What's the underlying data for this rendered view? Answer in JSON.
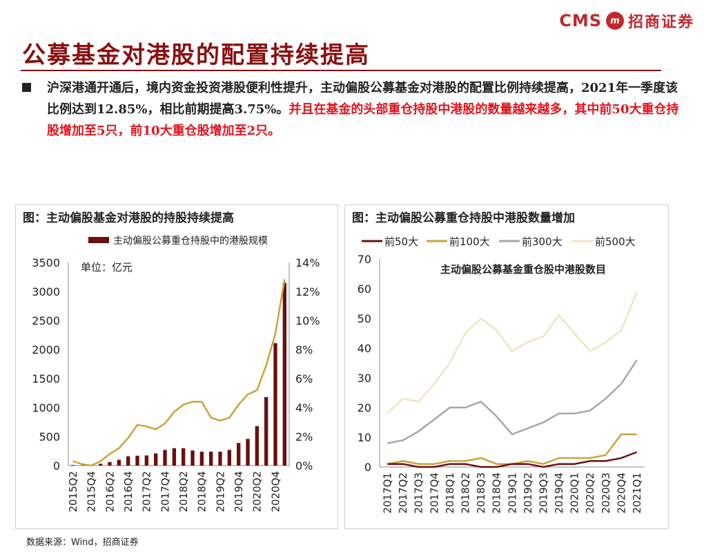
{
  "header": {
    "logo_cms": "CMS",
    "logo_cn": "招商证券",
    "title": "公募基金对港股的配置持续提高"
  },
  "bullet": {
    "black": "沪深港通开通后，境内资金投资港股便利性提升，主动偏股公募基金对港股的配置比例持续提高，2021年一季度该比例达到12.85%，相比前期提高3.75%。",
    "red": "并且在基金的头部重仓持股中港股的数量越来越多，其中前50大重仓持股增加至5只，前10大重仓股增加至2只。"
  },
  "source": "数据来源：Wind，招商证券",
  "colors": {
    "brand": "#c0282d",
    "title": "#8b0e0e",
    "emph": "#e0141e"
  },
  "chart_data": [
    {
      "type": "bar",
      "title": "图：主动偏股基金对港股的持股持续提高",
      "unit_label": "单位：亿元",
      "legend": "主动偏股公募重仓持股中的港股规模",
      "categories": [
        "2015Q2",
        "2015Q3",
        "2015Q4",
        "2016Q1",
        "2016Q2",
        "2016Q3",
        "2016Q4",
        "2017Q1",
        "2017Q2",
        "2017Q3",
        "2017Q4",
        "2018Q1",
        "2018Q2",
        "2018Q3",
        "2018Q4",
        "2019Q1",
        "2019Q2",
        "2019Q3",
        "2019Q4",
        "2020Q1",
        "2020Q2",
        "2020Q3",
        "2020Q4",
        "2021Q1"
      ],
      "x_tick_labels": [
        "2015Q2",
        "2015Q4",
        "2016Q2",
        "2016Q4",
        "2017Q2",
        "2017Q4",
        "2018Q2",
        "2018Q4",
        "2019Q2",
        "2019Q4",
        "2020Q2",
        "2020Q4"
      ],
      "bar_values": [
        10,
        5,
        10,
        30,
        60,
        100,
        160,
        170,
        175,
        210,
        270,
        300,
        300,
        260,
        240,
        240,
        240,
        270,
        390,
        460,
        680,
        1180,
        2110,
        3150
      ],
      "line_values": [
        0.3,
        0.1,
        0.0,
        0.3,
        0.8,
        1.2,
        1.9,
        2.8,
        2.7,
        2.5,
        2.9,
        3.7,
        4.2,
        4.4,
        4.4,
        3.3,
        3.1,
        3.3,
        4.2,
        4.9,
        5.2,
        6.9,
        9.1,
        12.85
      ],
      "ylim_left": [
        0,
        3500
      ],
      "ylim_right": [
        0,
        14
      ],
      "yticks_left": [
        "0",
        "500",
        "1000",
        "1500",
        "2000",
        "2500",
        "3000",
        "3500"
      ],
      "yticks_right": [
        "0%",
        "2%",
        "4%",
        "6%",
        "8%",
        "10%",
        "12%",
        "14%"
      ],
      "bar_color": "#6b0f0f",
      "line_color": "#c9a33a"
    },
    {
      "type": "line",
      "title": "图：主动偏股公募重仓持股中港股数量增加",
      "inner_title": "主动偏股公募基金重仓股中港股数目",
      "x": [
        "2017Q1",
        "2017Q2",
        "2017Q3",
        "2017Q4",
        "2018Q1",
        "2018Q2",
        "2018Q3",
        "2018Q4",
        "2019Q1",
        "2019Q2",
        "2019Q3",
        "2019Q4",
        "2020Q1",
        "2020Q2",
        "2020Q3",
        "2020Q4",
        "2021Q1"
      ],
      "ylim": [
        0,
        70
      ],
      "yticks": [
        "0",
        "10",
        "20",
        "30",
        "40",
        "50",
        "60",
        "70"
      ],
      "series": [
        {
          "name": "前50大",
          "color": "#6b0f0f",
          "values": [
            1,
            1,
            0,
            0,
            1,
            1,
            0,
            0,
            1,
            1,
            0,
            1,
            1,
            2,
            2,
            3,
            5
          ]
        },
        {
          "name": "前100大",
          "color": "#c9a33a",
          "values": [
            1,
            2,
            1,
            1,
            2,
            2,
            3,
            1,
            1,
            2,
            1,
            3,
            3,
            3,
            4,
            11,
            11
          ]
        },
        {
          "name": "前300大",
          "color": "#a6a6a6",
          "values": [
            8,
            9,
            12,
            16,
            20,
            20,
            22,
            17,
            11,
            13,
            15,
            18,
            18,
            19,
            23,
            28,
            36
          ]
        },
        {
          "name": "前500大",
          "color": "#f1e4c2",
          "values": [
            18,
            23,
            22,
            28,
            35,
            45,
            50,
            46,
            39,
            42,
            44,
            51,
            45,
            39,
            42,
            46,
            59
          ]
        }
      ]
    }
  ]
}
